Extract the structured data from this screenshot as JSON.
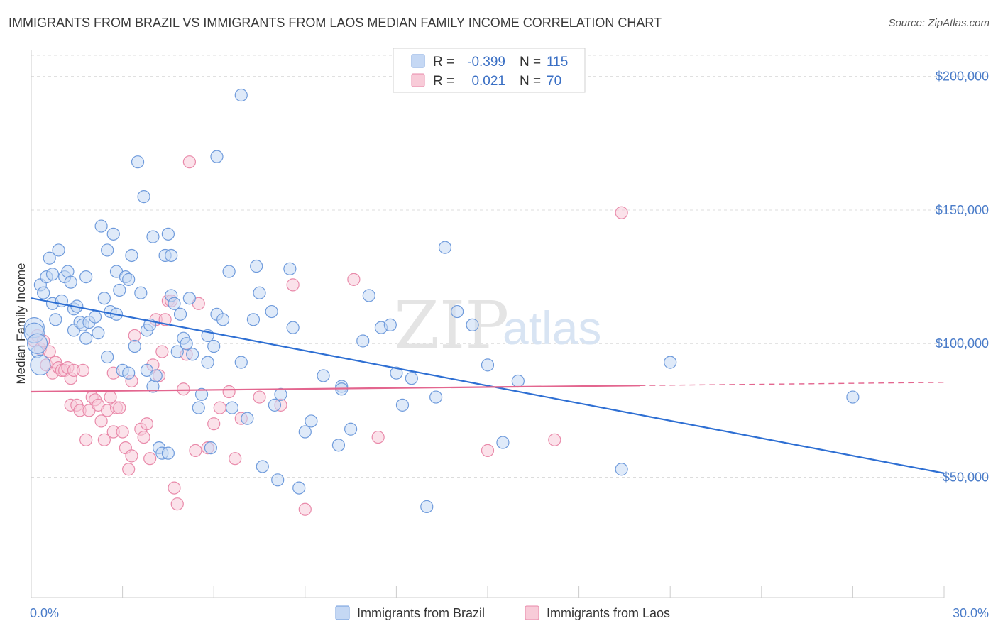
{
  "header": {
    "title": "IMMIGRANTS FROM BRAZIL VS IMMIGRANTS FROM LAOS MEDIAN FAMILY INCOME CORRELATION CHART",
    "source": "Source: ZipAtlas.com"
  },
  "watermark": {
    "zip": "ZIP",
    "atlas": "atlas"
  },
  "legend": {
    "r_label": "R =",
    "n_label": "N =",
    "rows": [
      {
        "r": "-0.399",
        "n": "115",
        "color": "#5b8fd6"
      },
      {
        "r": "0.021",
        "n": "70",
        "color": "#e87fa2"
      }
    ]
  },
  "colors": {
    "brazil_fill": "#c5d8f4",
    "brazil_stroke": "#6f9bdc",
    "brazil_line": "#2e6fd3",
    "laos_fill": "#f8cbd8",
    "laos_stroke": "#e98aaa",
    "laos_line": "#e3668f",
    "tick_text": "#4a7cc9"
  },
  "chart_data": {
    "type": "scatter",
    "title": "IMMIGRANTS FROM BRAZIL VS IMMIGRANTS FROM LAOS MEDIAN FAMILY INCOME CORRELATION CHART",
    "xlabel": "",
    "ylabel": "Median Family Income",
    "xlim": [
      0,
      30
    ],
    "ylim": [
      5000,
      210000
    ],
    "x_tick_labels": [
      "0.0%",
      "30.0%"
    ],
    "y_ticks": [
      50000,
      100000,
      150000,
      200000
    ],
    "y_tick_labels": [
      "$50,000",
      "$100,000",
      "$150,000",
      "$200,000"
    ],
    "grid": true,
    "legend_position": "top-center",
    "series": [
      {
        "name": "Immigrants from Brazil",
        "trend": {
          "x": [
            0,
            30
          ],
          "y": [
            117000,
            51500
          ],
          "dashed_from": null
        },
        "points": [
          [
            0.1,
            106000
          ],
          [
            0.1,
            104000
          ],
          [
            0.2,
            97000
          ],
          [
            0.3,
            122000
          ],
          [
            0.4,
            119000
          ],
          [
            0.5,
            125000
          ],
          [
            0.6,
            132000
          ],
          [
            0.7,
            126000
          ],
          [
            0.7,
            115000
          ],
          [
            0.8,
            109000
          ],
          [
            0.9,
            135000
          ],
          [
            1.0,
            116000
          ],
          [
            1.1,
            125000
          ],
          [
            1.2,
            127000
          ],
          [
            1.3,
            123000
          ],
          [
            1.4,
            105000
          ],
          [
            1.4,
            113000
          ],
          [
            1.5,
            114000
          ],
          [
            1.6,
            108000
          ],
          [
            1.7,
            107000
          ],
          [
            1.8,
            125000
          ],
          [
            1.8,
            102000
          ],
          [
            1.9,
            108000
          ],
          [
            2.1,
            110000
          ],
          [
            2.2,
            104000
          ],
          [
            2.3,
            144000
          ],
          [
            2.4,
            117000
          ],
          [
            2.5,
            135000
          ],
          [
            2.5,
            95000
          ],
          [
            2.6,
            112000
          ],
          [
            2.7,
            141000
          ],
          [
            2.8,
            111000
          ],
          [
            2.8,
            127000
          ],
          [
            2.9,
            120000
          ],
          [
            3.0,
            90000
          ],
          [
            3.1,
            125000
          ],
          [
            3.2,
            89000
          ],
          [
            3.2,
            124000
          ],
          [
            3.3,
            133000
          ],
          [
            3.4,
            99000
          ],
          [
            3.5,
            168000
          ],
          [
            3.6,
            119000
          ],
          [
            3.7,
            155000
          ],
          [
            3.8,
            105000
          ],
          [
            3.8,
            90000
          ],
          [
            3.9,
            107000
          ],
          [
            4.0,
            140000
          ],
          [
            4.0,
            84000
          ],
          [
            4.1,
            88000
          ],
          [
            4.2,
            61000
          ],
          [
            4.3,
            59000
          ],
          [
            4.4,
            133000
          ],
          [
            4.5,
            141000
          ],
          [
            4.5,
            59000
          ],
          [
            4.6,
            133000
          ],
          [
            4.6,
            118000
          ],
          [
            4.7,
            115000
          ],
          [
            4.8,
            97000
          ],
          [
            4.9,
            111000
          ],
          [
            5.0,
            102000
          ],
          [
            5.1,
            100000
          ],
          [
            5.2,
            117000
          ],
          [
            5.3,
            96000
          ],
          [
            5.5,
            76000
          ],
          [
            5.6,
            81000
          ],
          [
            5.8,
            93000
          ],
          [
            5.8,
            103000
          ],
          [
            5.9,
            61000
          ],
          [
            6.0,
            99000
          ],
          [
            6.1,
            111000
          ],
          [
            6.1,
            170000
          ],
          [
            6.3,
            109000
          ],
          [
            6.5,
            127000
          ],
          [
            6.6,
            76000
          ],
          [
            6.9,
            93000
          ],
          [
            6.9,
            193000
          ],
          [
            7.1,
            72000
          ],
          [
            7.3,
            109000
          ],
          [
            7.4,
            129000
          ],
          [
            7.5,
            119000
          ],
          [
            7.6,
            54000
          ],
          [
            7.9,
            112000
          ],
          [
            8.0,
            77000
          ],
          [
            8.1,
            49000
          ],
          [
            8.2,
            81000
          ],
          [
            8.5,
            128000
          ],
          [
            8.6,
            106000
          ],
          [
            8.8,
            46000
          ],
          [
            9.0,
            67000
          ],
          [
            9.2,
            71000
          ],
          [
            9.6,
            88000
          ],
          [
            10.1,
            62000
          ],
          [
            10.2,
            84000
          ],
          [
            10.2,
            83000
          ],
          [
            10.5,
            68000
          ],
          [
            10.9,
            101000
          ],
          [
            11.1,
            118000
          ],
          [
            11.5,
            106000
          ],
          [
            11.8,
            107000
          ],
          [
            12.0,
            89000
          ],
          [
            12.2,
            77000
          ],
          [
            12.5,
            87000
          ],
          [
            13.0,
            39000
          ],
          [
            13.3,
            80000
          ],
          [
            13.6,
            136000
          ],
          [
            14.0,
            112000
          ],
          [
            14.5,
            107000
          ],
          [
            15.0,
            92000
          ],
          [
            15.5,
            63000
          ],
          [
            16.0,
            86000
          ],
          [
            19.4,
            53000
          ],
          [
            21.0,
            93000
          ],
          [
            27.0,
            80000
          ],
          [
            0.3,
            92000
          ],
          [
            0.2,
            100000
          ]
        ]
      },
      {
        "name": "Immigrants from Laos",
        "trend": {
          "x": [
            0,
            30
          ],
          "y": [
            82000,
            85500
          ],
          "dashed_from": 20
        },
        "points": [
          [
            0.1,
            101000
          ],
          [
            0.2,
            103000
          ],
          [
            0.3,
            98000
          ],
          [
            0.4,
            101000
          ],
          [
            0.5,
            92000
          ],
          [
            0.6,
            97000
          ],
          [
            0.7,
            89000
          ],
          [
            0.8,
            93000
          ],
          [
            0.9,
            91000
          ],
          [
            1.0,
            90000
          ],
          [
            1.1,
            90000
          ],
          [
            1.2,
            91000
          ],
          [
            1.3,
            77000
          ],
          [
            1.3,
            87000
          ],
          [
            1.4,
            90000
          ],
          [
            1.5,
            77000
          ],
          [
            1.6,
            75000
          ],
          [
            1.7,
            90000
          ],
          [
            1.8,
            64000
          ],
          [
            1.9,
            75000
          ],
          [
            2.0,
            80000
          ],
          [
            2.1,
            79000
          ],
          [
            2.2,
            77000
          ],
          [
            2.3,
            71000
          ],
          [
            2.4,
            64000
          ],
          [
            2.5,
            75000
          ],
          [
            2.6,
            80000
          ],
          [
            2.7,
            67000
          ],
          [
            2.7,
            89000
          ],
          [
            2.8,
            76000
          ],
          [
            2.9,
            76000
          ],
          [
            3.0,
            67000
          ],
          [
            3.1,
            61000
          ],
          [
            3.2,
            53000
          ],
          [
            3.3,
            58000
          ],
          [
            3.3,
            86000
          ],
          [
            3.4,
            103000
          ],
          [
            3.6,
            68000
          ],
          [
            3.7,
            65000
          ],
          [
            3.8,
            70000
          ],
          [
            3.9,
            57000
          ],
          [
            4.0,
            92000
          ],
          [
            4.1,
            109000
          ],
          [
            4.2,
            88000
          ],
          [
            4.3,
            97000
          ],
          [
            4.4,
            109000
          ],
          [
            4.5,
            116000
          ],
          [
            4.6,
            116000
          ],
          [
            4.7,
            46000
          ],
          [
            4.8,
            40000
          ],
          [
            5.0,
            83000
          ],
          [
            5.1,
            96000
          ],
          [
            5.2,
            168000
          ],
          [
            5.4,
            60000
          ],
          [
            5.5,
            115000
          ],
          [
            5.8,
            61000
          ],
          [
            6.0,
            70000
          ],
          [
            6.2,
            76000
          ],
          [
            6.5,
            82000
          ],
          [
            6.7,
            57000
          ],
          [
            6.9,
            72000
          ],
          [
            7.5,
            80000
          ],
          [
            8.2,
            77000
          ],
          [
            8.6,
            122000
          ],
          [
            9.0,
            38000
          ],
          [
            10.6,
            124000
          ],
          [
            11.4,
            65000
          ],
          [
            15.0,
            60000
          ],
          [
            17.2,
            64000
          ],
          [
            19.4,
            149000
          ]
        ]
      }
    ]
  },
  "bottom_legend": [
    {
      "label": "Immigrants from Brazil"
    },
    {
      "label": "Immigrants from Laos"
    }
  ]
}
